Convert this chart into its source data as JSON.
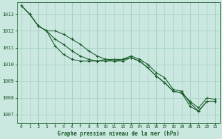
{
  "xlabel": "Graphe pression niveau de la mer (hPa)",
  "xlim": [
    -0.5,
    23.5
  ],
  "ylim": [
    1006.5,
    1013.7
  ],
  "yticks": [
    1007,
    1008,
    1009,
    1010,
    1011,
    1012,
    1013
  ],
  "xticks": [
    0,
    1,
    2,
    3,
    4,
    5,
    6,
    7,
    8,
    9,
    10,
    11,
    12,
    13,
    14,
    15,
    16,
    17,
    18,
    19,
    20,
    21,
    22,
    23
  ],
  "background_color": "#cbe8e0",
  "grid_color": "#a8d4c8",
  "line_color": "#1a5c2a",
  "series": [
    [
      1013.5,
      1013.0,
      1012.3,
      1012.0,
      1011.1,
      1010.6,
      1010.3,
      1010.2,
      1010.2,
      1010.2,
      1010.3,
      1010.3,
      1010.3,
      1010.5,
      1010.3,
      1010.0,
      1009.5,
      1009.2,
      1008.5,
      1008.4,
      1007.7,
      1007.2,
      1007.8,
      1007.8
    ],
    [
      1013.5,
      1013.0,
      1012.3,
      1012.0,
      1011.5,
      1011.2,
      1010.8,
      1010.5,
      1010.3,
      1010.2,
      1010.2,
      1010.2,
      1010.3,
      1010.4,
      1010.2,
      1009.8,
      1009.3,
      1008.9,
      1008.4,
      1008.3,
      1007.8,
      1007.4,
      1008.0,
      1007.9
    ],
    [
      1013.5,
      1013.0,
      1012.3,
      1012.0,
      1012.0,
      1011.8,
      1011.5,
      1011.2,
      1010.8,
      1010.5,
      1010.3,
      1010.2,
      1010.2,
      1010.4,
      1010.2,
      1009.8,
      1009.3,
      1008.9,
      1008.4,
      1008.3,
      1007.5,
      1007.2,
      1007.8,
      1007.8
    ]
  ]
}
